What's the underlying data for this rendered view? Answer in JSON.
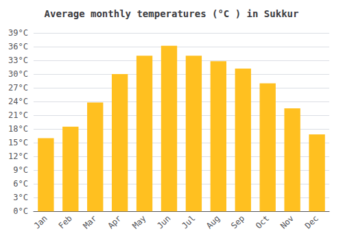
{
  "chart_data": {
    "type": "bar",
    "title": "Average monthly temperatures (°C ) in Sukkur",
    "categories": [
      "Jan",
      "Feb",
      "Mar",
      "Apr",
      "May",
      "Jun",
      "Jul",
      "Aug",
      "Sep",
      "Oct",
      "Nov",
      "Dec"
    ],
    "values": [
      16,
      18.5,
      23.8,
      30,
      34,
      36.2,
      34,
      32.8,
      31.2,
      28,
      22.5,
      16.8
    ],
    "color": "#FFC020",
    "ylim": [
      0,
      39
    ],
    "yticks": [
      {
        "value": 0,
        "label": "0°C"
      },
      {
        "value": 3,
        "label": "3°C"
      },
      {
        "value": 6,
        "label": "6°C"
      },
      {
        "value": 9,
        "label": "9°C"
      },
      {
        "value": 12,
        "label": "12°C"
      },
      {
        "value": 15,
        "label": "15°C"
      },
      {
        "value": 18,
        "label": "18°C"
      },
      {
        "value": 21,
        "label": "21°C"
      },
      {
        "value": 24,
        "label": "24°C"
      },
      {
        "value": 27,
        "label": "27°C"
      },
      {
        "value": 30,
        "label": "30°C"
      },
      {
        "value": 33,
        "label": "33°C"
      },
      {
        "value": 36,
        "label": "36°C"
      },
      {
        "value": 39,
        "label": "39°C"
      }
    ],
    "grid": true
  }
}
